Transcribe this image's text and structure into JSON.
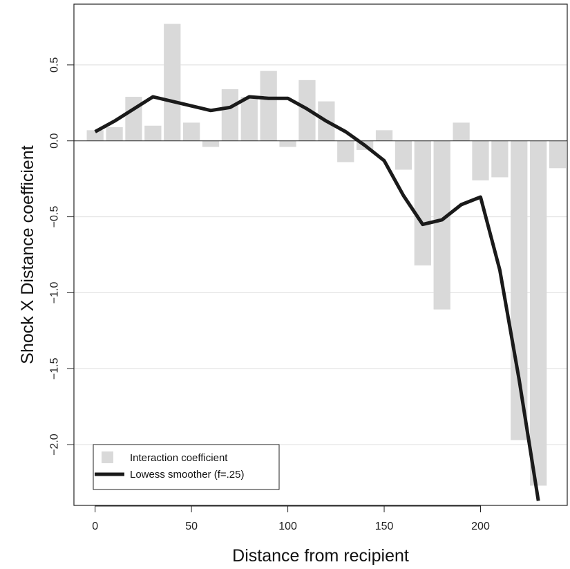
{
  "chart_data": {
    "type": "bar",
    "xlabel": "Distance from recipient",
    "ylabel": "Shock X Distance coefficient",
    "xlim": [
      -11,
      245
    ],
    "ylim": [
      -2.4,
      0.9
    ],
    "xticks": [
      0,
      50,
      100,
      150,
      200
    ],
    "yticks": [
      -2.0,
      -1.5,
      -1.0,
      -0.5,
      0.0,
      0.5
    ],
    "ytick_labels": [
      "−2.0",
      "−1.5",
      "−1.0",
      "−0.5",
      "0.0",
      "0.5"
    ],
    "grid": "horizontal",
    "legend_position": "bottom-left",
    "series": [
      {
        "name": "Interaction coefficient",
        "kind": "bar",
        "color": "#d9d9d9",
        "x": [
          0,
          10,
          20,
          30,
          40,
          50,
          60,
          70,
          80,
          90,
          100,
          110,
          120,
          130,
          140,
          150,
          160,
          170,
          180,
          190,
          200,
          210,
          220,
          230,
          240
        ],
        "values": [
          0.07,
          0.09,
          0.29,
          0.1,
          0.77,
          0.12,
          -0.04,
          0.34,
          0.29,
          0.46,
          -0.04,
          0.4,
          0.26,
          -0.14,
          -0.06,
          0.07,
          -0.19,
          -0.82,
          -1.11,
          0.12,
          -0.26,
          -0.24,
          -1.97,
          -2.27,
          -0.18
        ]
      },
      {
        "name": "Lowess smoother (f=.25)",
        "kind": "line",
        "color": "#1a1a1a",
        "x": [
          0,
          10,
          20,
          30,
          40,
          50,
          60,
          70,
          80,
          90,
          100,
          110,
          120,
          130,
          140,
          150,
          160,
          170,
          180,
          190,
          200,
          210,
          220,
          230
        ],
        "values": [
          0.06,
          0.13,
          0.21,
          0.29,
          0.26,
          0.23,
          0.2,
          0.22,
          0.29,
          0.28,
          0.28,
          0.21,
          0.13,
          0.06,
          -0.03,
          -0.13,
          -0.36,
          -0.55,
          -0.52,
          -0.42,
          -0.37,
          -0.85,
          -1.57,
          -2.37
        ]
      }
    ]
  }
}
